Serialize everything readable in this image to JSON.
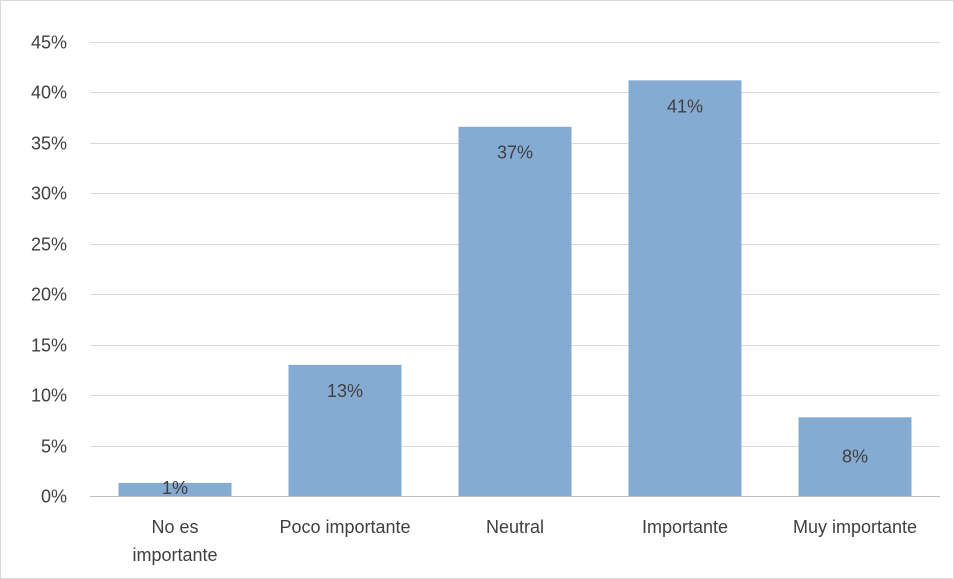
{
  "chart_data": {
    "type": "bar",
    "title": "",
    "xlabel": "",
    "ylabel": "",
    "categories": [
      "No es importante",
      "Poco importante",
      "Neutral",
      "Importante",
      "Muy importante"
    ],
    "category_lines": [
      [
        "No es",
        "importante"
      ],
      [
        "Poco importante"
      ],
      [
        "Neutral"
      ],
      [
        "Importante"
      ],
      [
        "Muy importante"
      ]
    ],
    "values": [
      1.3,
      13,
      36.6,
      41.2,
      7.8
    ],
    "data_labels": [
      "1%",
      "13%",
      "37%",
      "41%",
      "8%"
    ],
    "ylim": [
      0,
      45
    ],
    "yticks": [
      0,
      5,
      10,
      15,
      20,
      25,
      30,
      35,
      40,
      45
    ],
    "ytick_labels": [
      "0%",
      "5%",
      "10%",
      "15%",
      "20%",
      "25%",
      "30%",
      "35%",
      "40%",
      "45%"
    ],
    "grid": true,
    "legend": "none",
    "colors": {
      "bar": "#85abd2",
      "grid": "#d9d9d9",
      "axis": "#bfbfbf",
      "text": "#404040"
    }
  }
}
